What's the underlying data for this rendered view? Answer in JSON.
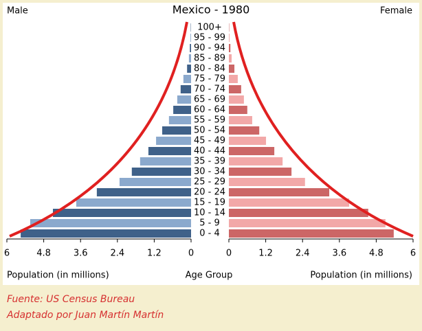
{
  "chart_data": {
    "type": "pyramid",
    "title": "Mexico - 1980",
    "categories": [
      "0 - 4",
      "5 - 9",
      "10 - 14",
      "15 - 19",
      "20 - 24",
      "25 - 29",
      "30 - 34",
      "35 - 39",
      "40 - 44",
      "45 - 49",
      "50 - 54",
      "55 - 59",
      "60 - 64",
      "65 - 69",
      "70 - 74",
      "75 - 79",
      "80 - 84",
      "85 - 89",
      "90 - 94",
      "95 - 99",
      "100+"
    ],
    "series": [
      {
        "name": "Male",
        "colors": [
          "#3f6189",
          "#8ba9cd"
        ],
        "values": [
          5.55,
          5.24,
          4.5,
          3.74,
          3.07,
          2.33,
          1.93,
          1.66,
          1.39,
          1.14,
          0.94,
          0.72,
          0.58,
          0.45,
          0.34,
          0.25,
          0.13,
          0.07,
          0.04,
          0.02,
          0.01
        ]
      },
      {
        "name": "Female",
        "colors": [
          "#cc6666",
          "#f2a8a8"
        ],
        "values": [
          5.37,
          5.1,
          4.54,
          3.92,
          3.27,
          2.48,
          2.04,
          1.75,
          1.48,
          1.21,
          0.99,
          0.76,
          0.6,
          0.49,
          0.4,
          0.29,
          0.18,
          0.09,
          0.05,
          0.02,
          0.01
        ]
      }
    ],
    "xlim": [
      0,
      6
    ],
    "xticks": [
      0,
      1.2,
      2.4,
      3.6,
      4.8,
      6
    ],
    "x_label": "Population (in millions)",
    "category_label": "Age Group"
  },
  "credits": [
    "Fuente: US Census Bureau",
    "Adaptado por Juan Martín Martín"
  ]
}
